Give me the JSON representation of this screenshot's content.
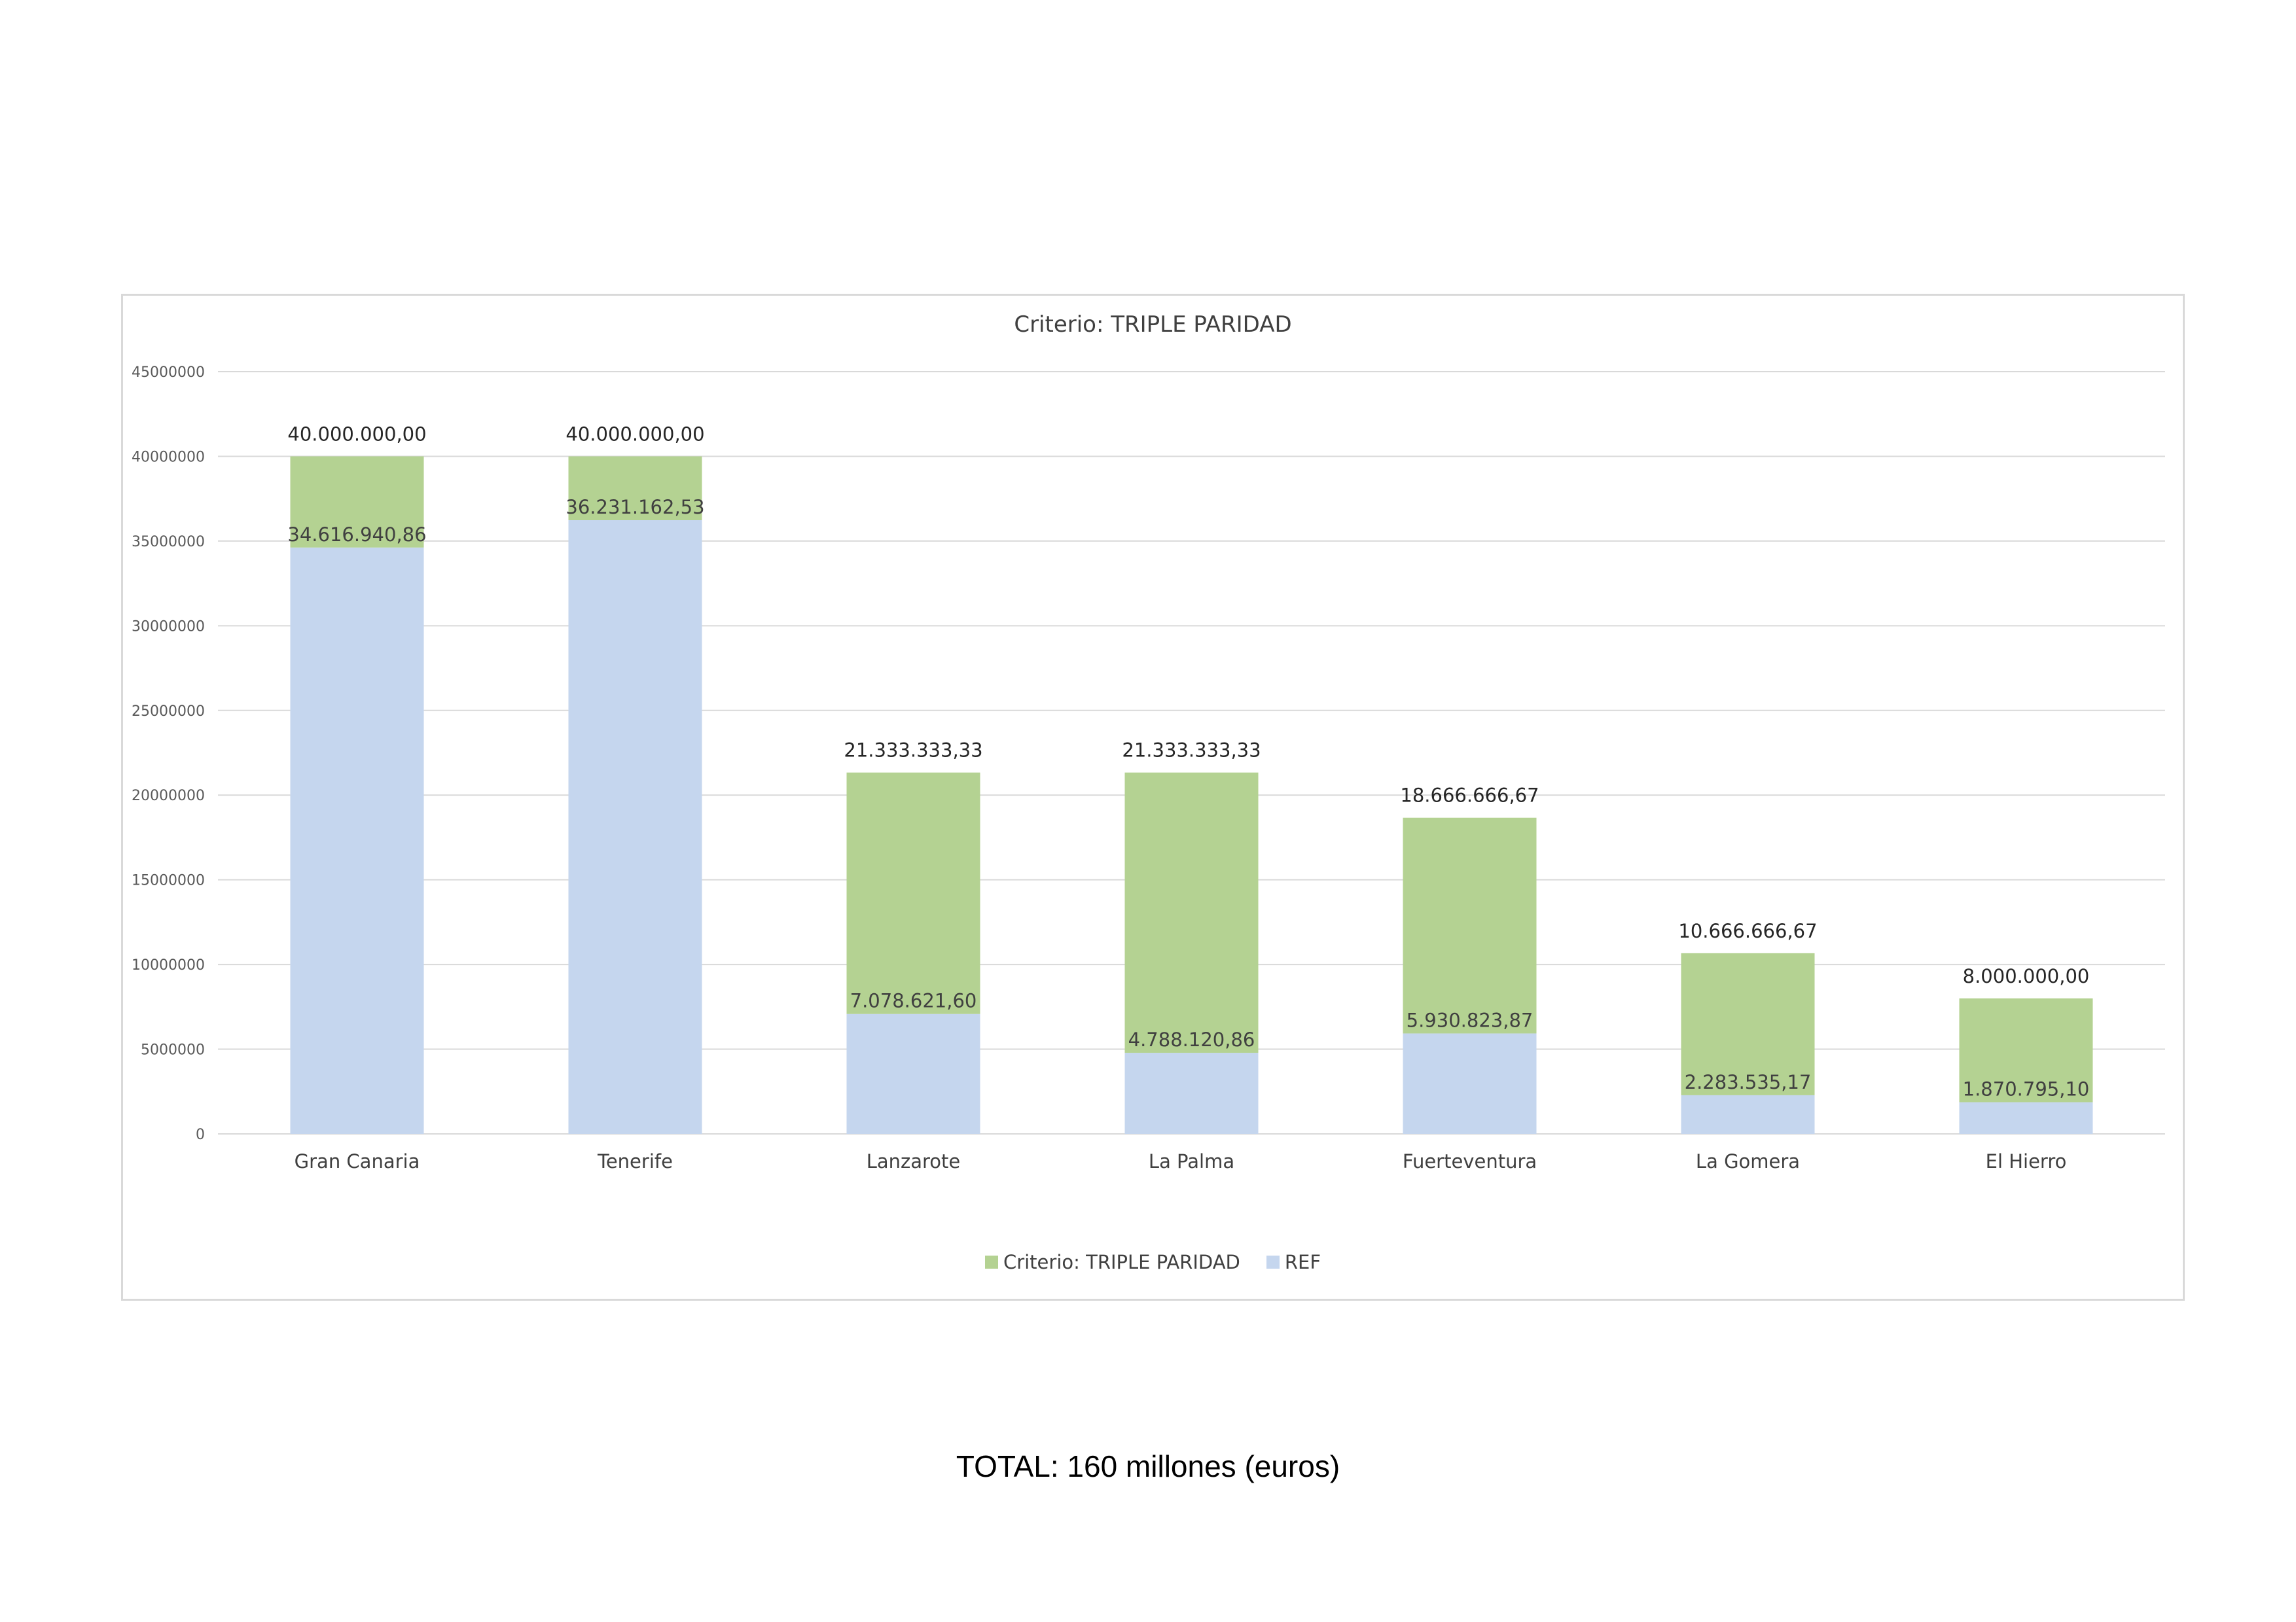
{
  "chart_data": {
    "type": "bar",
    "stacked": true,
    "title": "Criterio: TRIPLE PARIDAD",
    "categories": [
      "Gran Canaria",
      "Tenerife",
      "Lanzarote",
      "La Palma",
      "Fuerteventura",
      "La Gomera",
      "El Hierro"
    ],
    "series": [
      {
        "name": "REF",
        "color": "#c5d6ee",
        "values": [
          34616940.86,
          36231162.53,
          7078621.6,
          4788120.86,
          5930823.87,
          2283535.17,
          1870795.1
        ],
        "labels": [
          "34.616.940,86",
          "36.231.162,53",
          "7.078.621,60",
          "4.788.120,86",
          "5.930.823,87",
          "2.283.535,17",
          "1.870.795,10"
        ]
      },
      {
        "name": "Criterio: TRIPLE PARIDAD",
        "color": "#b4d292",
        "values": [
          5383059.14,
          3768837.47,
          14254711.73,
          16545212.47,
          12735842.8,
          8383131.5,
          6129204.9
        ]
      }
    ],
    "totals": [
      40000000,
      40000000,
      21333333.33,
      21333333.33,
      18666666.67,
      10666666.67,
      8000000
    ],
    "total_labels": [
      "40.000.000,00",
      "40.000.000,00",
      "21.333.333,33",
      "21.333.333,33",
      "18.666.666,67",
      "10.666.666,67",
      "8.000.000,00"
    ],
    "ylim": [
      0,
      45000000
    ],
    "yticks": [
      0,
      5000000,
      10000000,
      15000000,
      20000000,
      25000000,
      30000000,
      35000000,
      40000000,
      45000000
    ],
    "ytick_labels": [
      "0",
      "5000000",
      "10000000",
      "15000000",
      "20000000",
      "25000000",
      "30000000",
      "35000000",
      "40000000",
      "45000000"
    ],
    "xlabel": "",
    "ylabel": "",
    "grid": true,
    "legend_position": "bottom",
    "legend": [
      {
        "label": "Criterio: TRIPLE PARIDAD",
        "color": "#b4d292"
      },
      {
        "label": "REF",
        "color": "#c5d6ee"
      }
    ]
  },
  "footer": {
    "total_text": "TOTAL: 160 millones (euros)"
  }
}
